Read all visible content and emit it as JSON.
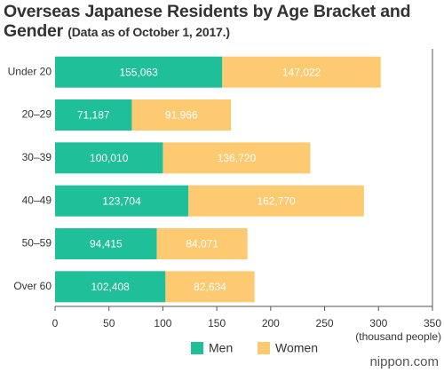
{
  "chart_data": {
    "type": "stacked-barh",
    "title": "Overseas Japanese Residents by Age Bracket and Gender",
    "subtitle": "(Data as of October 1, 2017.)",
    "x_label": "(thousand people)",
    "categories": [
      "Under 20",
      "20–29",
      "30–39",
      "40–49",
      "50–59",
      "Over 60"
    ],
    "series": [
      {
        "name": "Men",
        "color": "#1fbf99",
        "values": [
          155.063,
          71.187,
          100.01,
          123.704,
          94.415,
          102.408
        ],
        "value_labels": [
          "155,063",
          "71,187",
          "100,010",
          "123,704",
          "94,415",
          "102,408"
        ]
      },
      {
        "name": "Women",
        "color": "#fdca71",
        "values": [
          147.022,
          91.966,
          136.72,
          162.77,
          84.071,
          82.634
        ],
        "value_labels": [
          "147,022",
          "91,966",
          "136,720",
          "162,770",
          "84,071",
          "82,634"
        ]
      }
    ],
    "xlim": [
      0,
      350
    ],
    "xticks": [
      0,
      50,
      100,
      150,
      200,
      250,
      300,
      350
    ],
    "brand": "nippon.com"
  }
}
